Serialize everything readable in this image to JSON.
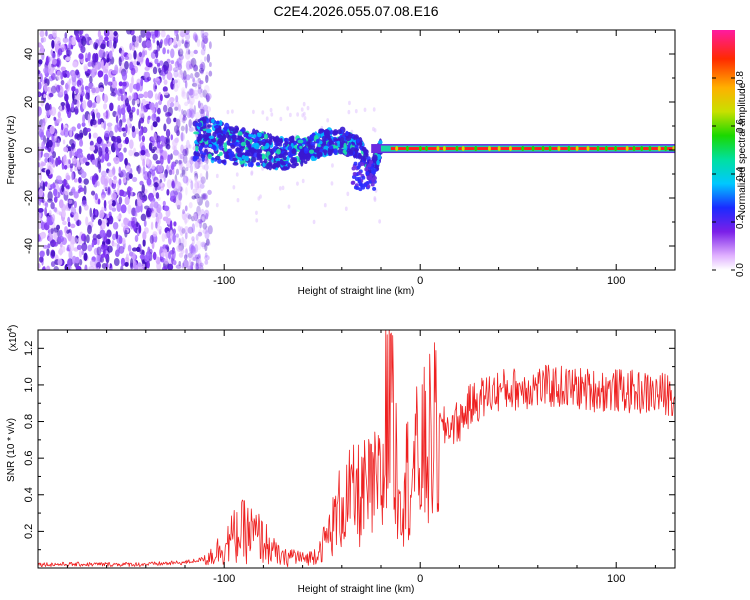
{
  "title": "C2E4.2026.055.07.08.E16",
  "colors": {
    "snr_line": "#ee2020",
    "spectral_points": "#6a2bd8",
    "carrier": "#ff1a1a",
    "frame": "#000000"
  },
  "colorbar": {
    "label": "Normalized spectral amplitude",
    "ticks": [
      "0.0",
      "0.2",
      "0.4",
      "0.6",
      "0.8"
    ],
    "tick_values": [
      0.0,
      0.2,
      0.4,
      0.6,
      0.8
    ]
  },
  "chart_data": [
    {
      "type": "heatmap",
      "title": "C2E4.2026.055.07.08.E16",
      "xlabel": "Height of straight line (km)",
      "ylabel": "Frequency (Hz)",
      "xlim": [
        -195,
        130
      ],
      "ylim": [
        -50,
        50
      ],
      "x_ticks": [
        -100,
        0,
        100
      ],
      "x_tick_labels": [
        "-100",
        "0",
        "100"
      ],
      "y_ticks": [
        -40,
        -20,
        0,
        20,
        40
      ],
      "y_tick_labels": [
        "-40",
        "-20",
        "0",
        "20",
        "40"
      ],
      "colorbar_range": [
        0.0,
        1.0
      ],
      "noise_region_km": [
        -195,
        -115
      ],
      "signal_band": {
        "x": [
          -110,
          -100,
          -90,
          -80,
          -70,
          -60,
          -50,
          -40,
          -30,
          -25,
          -20,
          -10,
          0,
          50,
          100,
          130
        ],
        "center_hz": [
          5,
          3,
          1,
          0,
          -2,
          0,
          3,
          4,
          0,
          -10,
          1,
          1,
          1,
          0.5,
          0.5,
          0.5
        ]
      }
    },
    {
      "type": "line",
      "xlabel": "Height of straight line (km)",
      "ylabel": "SNR (10 * v/v)",
      "y_multiplier": "(x10",
      "y_multiplier_exp": "4",
      "y_multiplier_close": ")",
      "xlim": [
        -195,
        130
      ],
      "ylim": [
        0,
        1.3
      ],
      "x_ticks": [
        -100,
        0,
        100
      ],
      "x_tick_labels": [
        "-100",
        "0",
        "100"
      ],
      "y_ticks": [
        0.2,
        0.4,
        0.6,
        0.8,
        1.0,
        1.2
      ],
      "y_tick_labels": [
        "0.2",
        "0.4",
        "0.6",
        "0.8",
        "1.0",
        "1.2"
      ],
      "series": [
        {
          "name": "SNR",
          "x": [
            -195,
            -180,
            -160,
            -140,
            -120,
            -110,
            -105,
            -100,
            -95,
            -90,
            -85,
            -80,
            -75,
            -70,
            -65,
            -60,
            -55,
            -50,
            -45,
            -40,
            -35,
            -30,
            -25,
            -20,
            -17,
            -15,
            -12,
            -10,
            -5,
            0,
            5,
            10,
            15,
            20,
            25,
            30,
            35,
            40,
            50,
            60,
            70,
            80,
            90,
            100,
            110,
            120,
            130
          ],
          "y": [
            0.02,
            0.02,
            0.02,
            0.02,
            0.03,
            0.05,
            0.08,
            0.12,
            0.17,
            0.2,
            0.18,
            0.15,
            0.09,
            0.05,
            0.07,
            0.05,
            0.06,
            0.12,
            0.22,
            0.35,
            0.38,
            0.4,
            0.42,
            0.45,
            0.5,
            0.8,
            0.55,
            0.45,
            0.52,
            0.6,
            0.68,
            0.75,
            0.78,
            0.8,
            0.88,
            0.92,
            0.95,
            0.97,
            0.98,
            0.99,
            0.99,
            0.98,
            0.97,
            0.97,
            0.96,
            0.95,
            0.95
          ]
        }
      ]
    }
  ]
}
